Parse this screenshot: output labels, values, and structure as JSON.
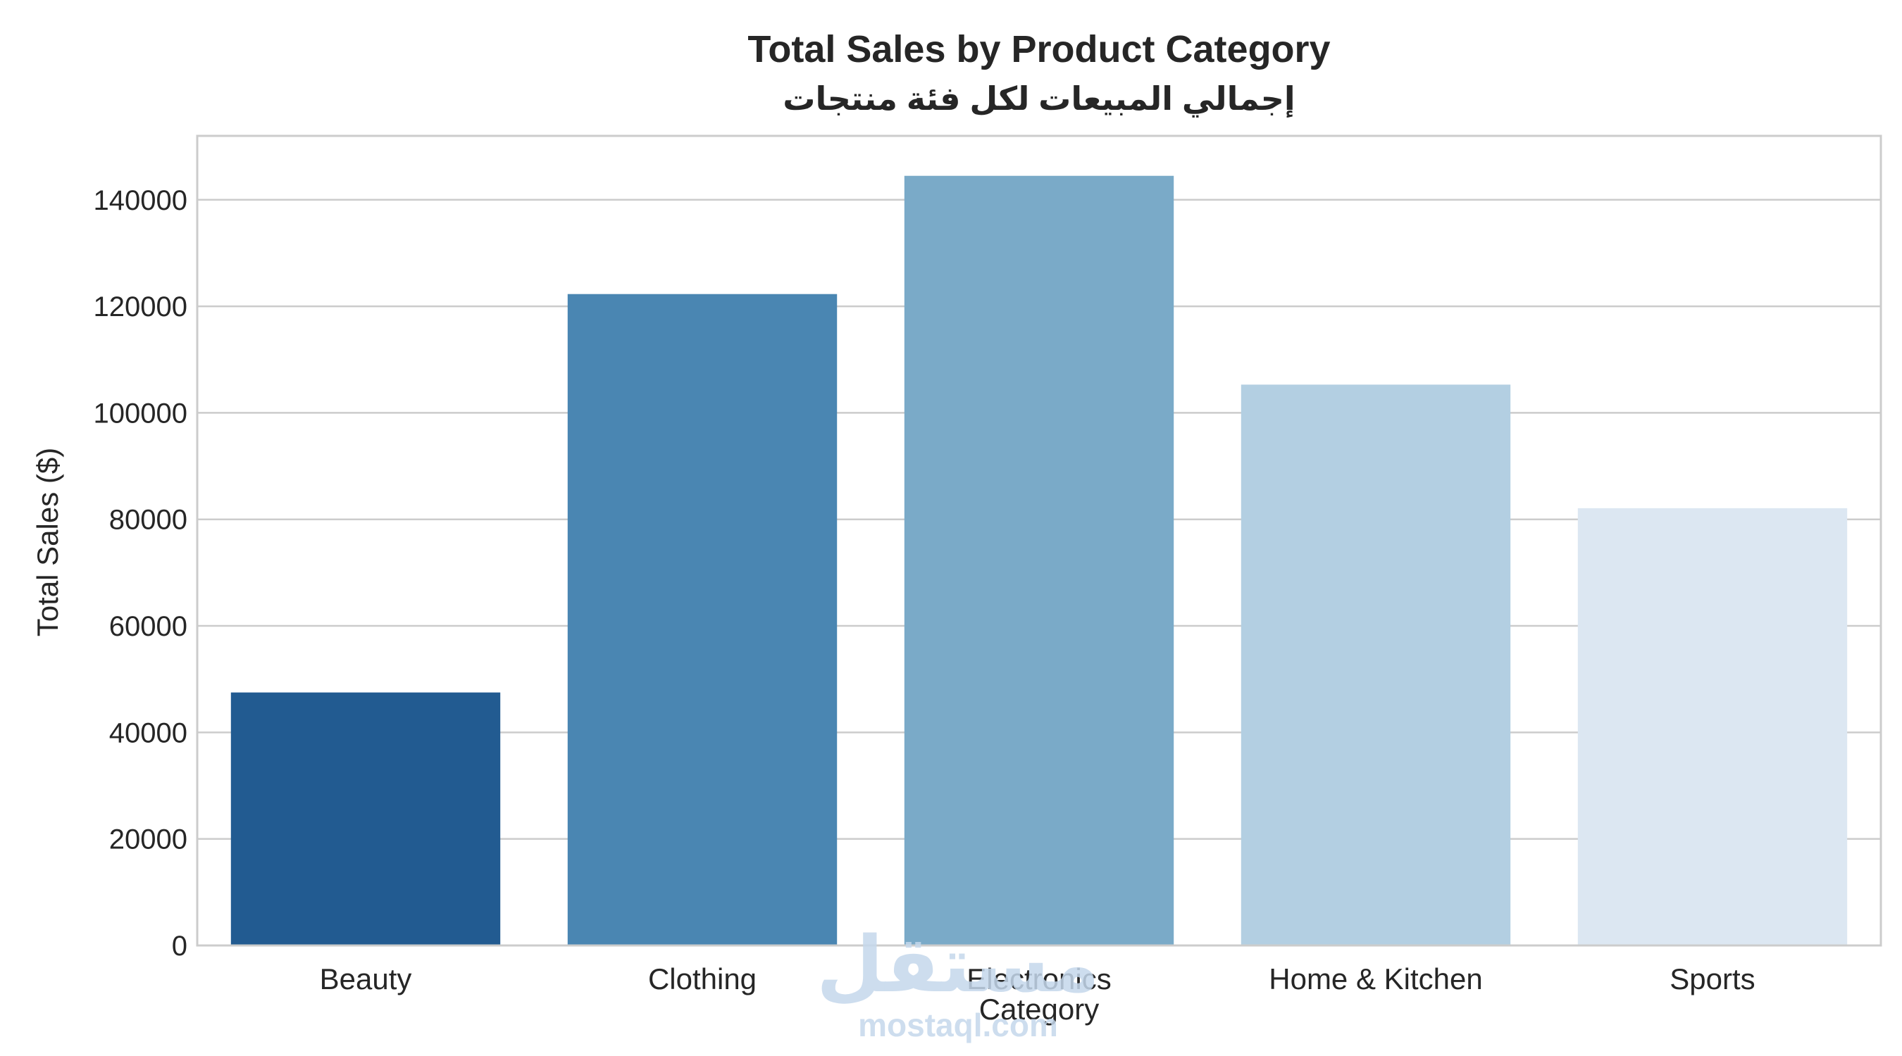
{
  "chart_data": {
    "type": "bar",
    "title": "Total Sales by Product Category",
    "subtitle": "إجمالي المبيعات لكل فئة منتجات",
    "xlabel": "Category",
    "ylabel": "Total Sales ($)",
    "categories": [
      "Beauty",
      "Clothing",
      "Electronics",
      "Home & Kitchen",
      "Sports"
    ],
    "values": [
      47500,
      122300,
      144500,
      105300,
      82100
    ],
    "colors": [
      "#225b91",
      "#4a86b2",
      "#7aaac8",
      "#b3cfe2",
      "#dce7f2"
    ],
    "ylim": [
      0,
      152000
    ],
    "yticks": [
      0,
      20000,
      40000,
      60000,
      80000,
      100000,
      120000,
      140000
    ],
    "grid": "horizontal",
    "legend": "none"
  },
  "watermark": {
    "arabic": "مستقل",
    "latin": "mostaql.com"
  }
}
